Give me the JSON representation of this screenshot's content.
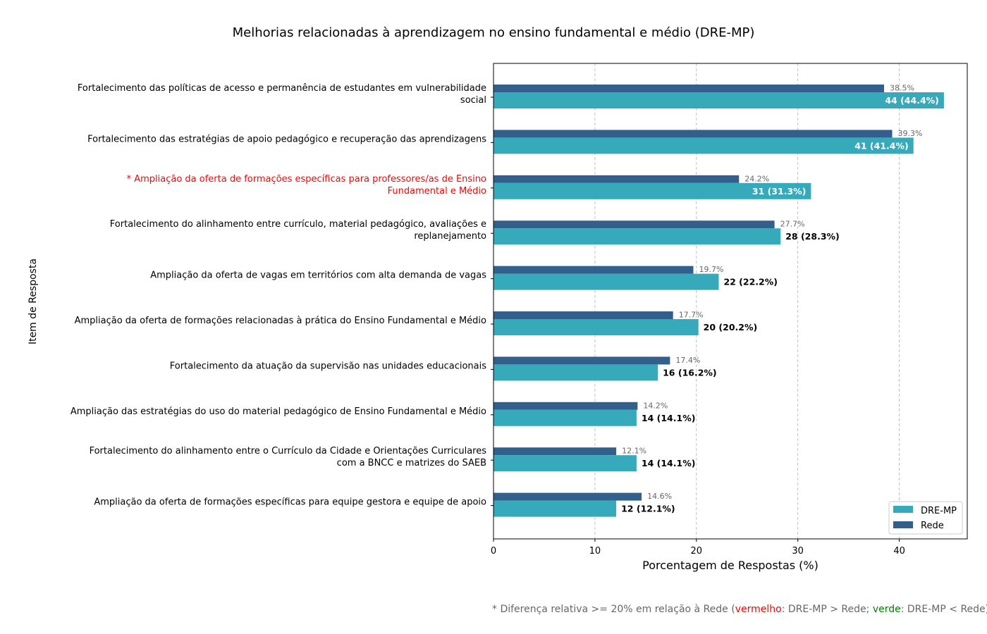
{
  "chart_data": {
    "type": "bar",
    "orientation": "horizontal",
    "title": "Melhorias relacionadas à aprendizagem no ensino fundamental e médio (DRE-MP)",
    "xlabel": "Porcentagem de Respostas (%)",
    "ylabel": "Item de Resposta",
    "xlim": [
      0,
      46.7
    ],
    "xticks": [
      0,
      10,
      20,
      30,
      40
    ],
    "grid": "x-dashed",
    "legend_position": "bottom-right",
    "categories": [
      {
        "lines": [
          "Fortalecimento das políticas de acesso e permanência de estudantes em vulnerabilidade",
          "social"
        ],
        "flag": false
      },
      {
        "lines": [
          "Fortalecimento das estratégias de apoio pedagógico e recuperação das aprendizagens"
        ],
        "flag": false
      },
      {
        "lines": [
          "* Ampliação da oferta de formações específicas para professores/as de Ensino",
          "Fundamental e Médio"
        ],
        "flag": true
      },
      {
        "lines": [
          "Fortalecimento do alinhamento entre currículo, material pedagógico, avaliações e",
          "replanejamento"
        ],
        "flag": false
      },
      {
        "lines": [
          "Ampliação da oferta de vagas em territórios com alta demanda de vagas"
        ],
        "flag": false
      },
      {
        "lines": [
          "Ampliação da oferta de formações relacionadas à prática do Ensino Fundamental e Médio"
        ],
        "flag": false
      },
      {
        "lines": [
          "Fortalecimento da atuação da supervisão nas unidades educacionais"
        ],
        "flag": false
      },
      {
        "lines": [
          "Ampliação das estratégias do uso do material pedagógico de Ensino Fundamental e Médio"
        ],
        "flag": false
      },
      {
        "lines": [
          "Fortalecimento do alinhamento entre o Currículo da Cidade e Orientações Curriculares",
          "com a BNCC e matrizes do SAEB"
        ],
        "flag": false
      },
      {
        "lines": [
          "Ampliação da oferta de formações específicas para equipe gestora e equipe de apoio"
        ],
        "flag": false
      }
    ],
    "series": [
      {
        "name": "DRE-MP",
        "color": "#36a9bb",
        "values": [
          44.4,
          41.4,
          31.3,
          28.3,
          22.2,
          20.2,
          16.2,
          14.1,
          14.1,
          12.1
        ],
        "labels": [
          "44 (44.4%)",
          "41 (41.4%)",
          "31 (31.3%)",
          "28 (28.3%)",
          "22 (22.2%)",
          "20 (20.2%)",
          "16 (16.2%)",
          "14 (14.1%)",
          "14 (14.1%)",
          "12 (12.1%)"
        ],
        "label_inside": [
          true,
          true,
          true,
          false,
          false,
          false,
          false,
          false,
          false,
          false
        ]
      },
      {
        "name": "Rede",
        "color": "#335f8d",
        "values": [
          38.5,
          39.3,
          24.2,
          27.7,
          19.7,
          17.7,
          17.4,
          14.2,
          12.1,
          14.6
        ],
        "labels": [
          "38.5%",
          "39.3%",
          "24.2%",
          "27.7%",
          "19.7%",
          "17.7%",
          "17.4%",
          "14.2%",
          "12.1%",
          "14.6%"
        ]
      }
    ]
  },
  "footnote": {
    "prefix": "* Diferença relativa >= 20% em relação à Rede (",
    "red_word": "vermelho",
    "middle": ": DRE-MP > Rede; ",
    "green_word": "verde",
    "suffix": ": DRE-MP < Rede)"
  }
}
